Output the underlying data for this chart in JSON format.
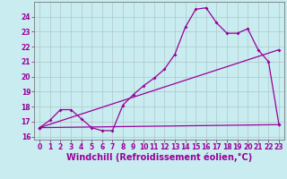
{
  "xlabel": "Windchill (Refroidissement éolien,°C)",
  "background_color": "#c8ecf0",
  "grid_color": "#b0c8cc",
  "line_color": "#990099",
  "xlim": [
    -0.5,
    23.5
  ],
  "ylim": [
    15.8,
    25.0
  ],
  "x_ticks": [
    0,
    1,
    2,
    3,
    4,
    5,
    6,
    7,
    8,
    9,
    10,
    11,
    12,
    13,
    14,
    15,
    16,
    17,
    18,
    19,
    20,
    21,
    22,
    23
  ],
  "y_ticks": [
    16,
    17,
    18,
    19,
    20,
    21,
    22,
    23,
    24
  ],
  "series1_x": [
    0,
    1,
    2,
    3,
    4,
    5,
    6,
    7,
    8,
    9,
    10,
    11,
    12,
    13,
    14,
    15,
    16,
    17,
    18,
    19,
    20,
    21,
    22,
    23
  ],
  "series1_y": [
    16.6,
    17.1,
    17.8,
    17.8,
    17.2,
    16.6,
    16.4,
    16.4,
    18.1,
    18.8,
    19.4,
    19.9,
    20.5,
    21.5,
    23.3,
    24.5,
    24.6,
    23.6,
    22.9,
    22.9,
    23.2,
    21.8,
    21.0,
    16.8
  ],
  "series2_x": [
    0,
    23
  ],
  "series2_y": [
    16.6,
    16.8
  ],
  "series3_x": [
    0,
    23
  ],
  "series3_y": [
    16.6,
    21.8
  ],
  "tick_fontsize": 5.5,
  "xlabel_fontsize": 7.0,
  "marker_size": 2.0,
  "line_width": 0.9
}
